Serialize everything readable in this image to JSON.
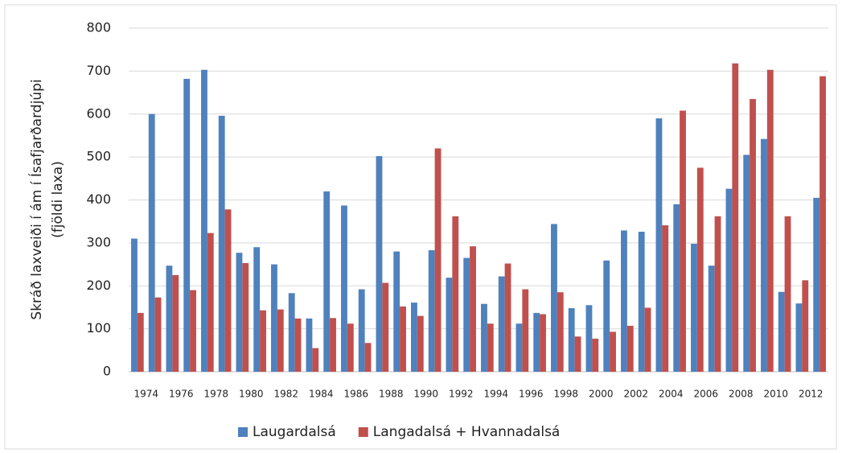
{
  "chart_data": {
    "type": "bar",
    "y_label": [
      "Skráð laxveiði í ám í Ísafjarðardjúpi",
      "(fjöldi laxa)"
    ],
    "categories": [
      "1974",
      null,
      "1976",
      null,
      "1978",
      null,
      "1980",
      null,
      "1982",
      null,
      "1984",
      null,
      "1986",
      null,
      "1988",
      null,
      "1990",
      null,
      "1992",
      null,
      "1994",
      null,
      "1996",
      null,
      "1998",
      null,
      "2000",
      null,
      "2002",
      null,
      "2004",
      null,
      "2006",
      null,
      "2008",
      null,
      "2010",
      null,
      "2012",
      null
    ],
    "series": [
      {
        "name": "Laugardalsá",
        "color": "#4f81bd",
        "values": [
          310,
          600,
          247,
          682,
          703,
          596,
          277,
          290,
          250,
          183,
          124,
          420,
          387,
          192,
          502,
          280,
          161,
          283,
          219,
          265,
          158,
          222,
          112,
          137,
          344,
          148,
          155,
          259,
          329,
          326,
          590,
          390,
          298,
          247,
          426,
          505,
          542,
          186,
          159,
          405
        ]
      },
      {
        "name": "Langadalsá + Hvannadalsá",
        "color": "#c0504d",
        "values": [
          137,
          173,
          225,
          190,
          323,
          378,
          253,
          143,
          145,
          124,
          55,
          125,
          112,
          67,
          207,
          152,
          130,
          520,
          362,
          292,
          112,
          252,
          192,
          134,
          185,
          82,
          77,
          93,
          107,
          149,
          341,
          608,
          475,
          362,
          718,
          635,
          703,
          362,
          213,
          688
        ]
      }
    ],
    "ylim": [
      0,
      800
    ],
    "yticks": [
      0,
      100,
      200,
      300,
      400,
      500,
      600,
      700,
      800
    ],
    "grid": true,
    "legend": "bottom"
  }
}
